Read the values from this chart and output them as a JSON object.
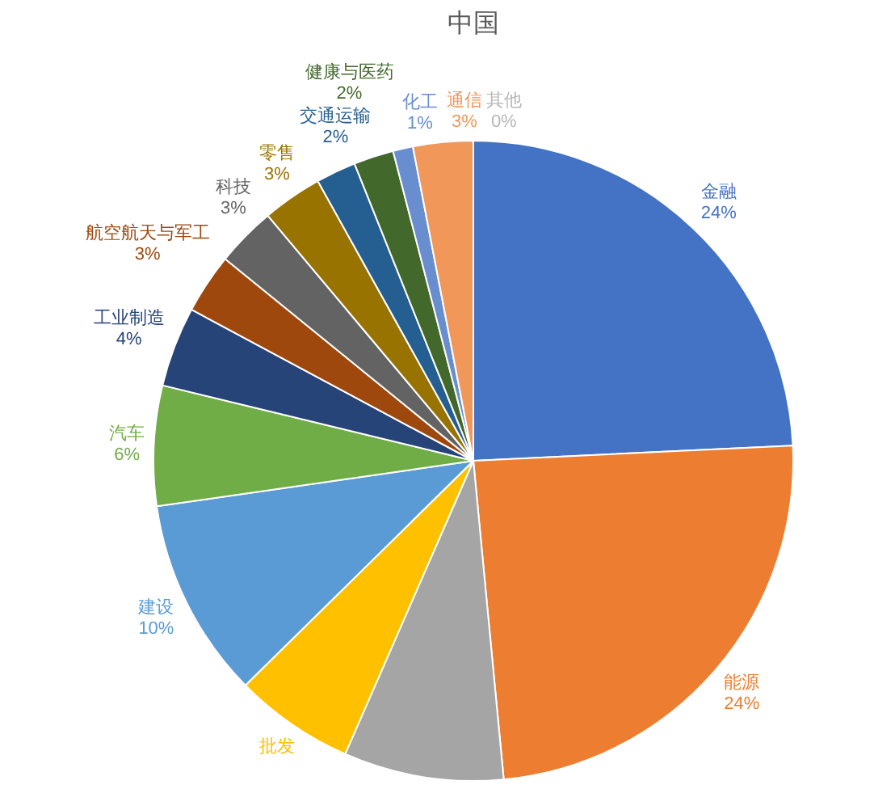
{
  "chart_data": {
    "type": "pie",
    "title": "中国",
    "categories": [
      "金融",
      "能源",
      null,
      "批发",
      "建设",
      "汽车",
      "工业制造",
      "航空航天与军工",
      "科技",
      "零售",
      "交通运输",
      "健康与医药",
      "化工",
      "通信",
      "其他"
    ],
    "values": [
      24,
      24,
      8,
      6,
      10,
      6,
      4,
      3,
      3,
      3,
      2,
      2,
      1,
      3,
      0
    ],
    "value_labels": [
      "24%",
      "24%",
      null,
      null,
      "10%",
      "6%",
      "4%",
      "3%",
      "3%",
      "3%",
      "2%",
      "2%",
      "1%",
      "3%",
      "0%"
    ],
    "colors": [
      "#4472c4",
      "#ed7d31",
      "#a5a5a5",
      "#ffc000",
      "#5b9bd5",
      "#70ad47",
      "#264478",
      "#9e480e",
      "#636363",
      "#997300",
      "#255e91",
      "#43682b",
      "#698ed0",
      "#f1975a",
      "#b7b7b7"
    ]
  }
}
